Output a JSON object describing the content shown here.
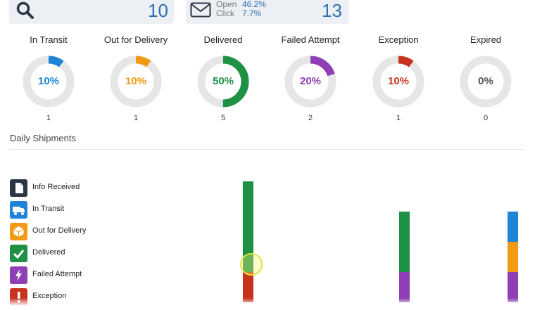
{
  "summary": {
    "search_value": "10",
    "open_label": "Open",
    "click_label": "Click",
    "open_rate": "46.2%",
    "click_rate": "7.7%",
    "email_value": "13"
  },
  "statuses": [
    {
      "title": "In Transit",
      "percent_label": "10%",
      "percent": 10,
      "count": "1",
      "color": "#1f83d6"
    },
    {
      "title": "Out for Delivery",
      "percent_label": "10%",
      "percent": 10,
      "count": "1",
      "color": "#f39a15"
    },
    {
      "title": "Delivered",
      "percent_label": "50%",
      "percent": 50,
      "count": "5",
      "color": "#1e9145"
    },
    {
      "title": "Failed Attempt",
      "percent_label": "20%",
      "percent": 20,
      "count": "2",
      "color": "#8e3fb3"
    },
    {
      "title": "Exception",
      "percent_label": "10%",
      "percent": 10,
      "count": "1",
      "color": "#c8331d"
    },
    {
      "title": "Expired",
      "percent_label": "0%",
      "percent": 0,
      "count": "0",
      "color": "#555555"
    }
  ],
  "daily": {
    "title": "Daily Shipments"
  },
  "legend": [
    {
      "label": "Info Received",
      "color": "#2b3745",
      "icon": "document-icon"
    },
    {
      "label": "In Transit",
      "color": "#1f83d6",
      "icon": "truck-icon"
    },
    {
      "label": "Out for Delivery",
      "color": "#f39a15",
      "icon": "box-icon"
    },
    {
      "label": "Delivered",
      "color": "#1e9145",
      "icon": "check-icon"
    },
    {
      "label": "Failed Attempt",
      "color": "#8e3fb3",
      "icon": "bolt-icon"
    },
    {
      "label": "Exception",
      "color": "#c8331d",
      "icon": "exclamation-icon"
    }
  ],
  "chart_data": {
    "type": "bar",
    "stacked": true,
    "title": "Daily Shipments",
    "series": [
      {
        "name": "Exception",
        "color": "#c8331d",
        "values": [
          1,
          0,
          0
        ]
      },
      {
        "name": "Failed Attempt",
        "color": "#8e3fb3",
        "values": [
          0,
          1,
          1
        ]
      },
      {
        "name": "Delivered",
        "color": "#1e9145",
        "values": [
          3,
          2,
          0
        ]
      },
      {
        "name": "Out for Delivery",
        "color": "#f39a15",
        "values": [
          0,
          0,
          1
        ]
      },
      {
        "name": "In Transit",
        "color": "#1f83d6",
        "values": [
          0,
          0,
          1
        ]
      }
    ],
    "ylim": [
      0,
      4
    ]
  }
}
